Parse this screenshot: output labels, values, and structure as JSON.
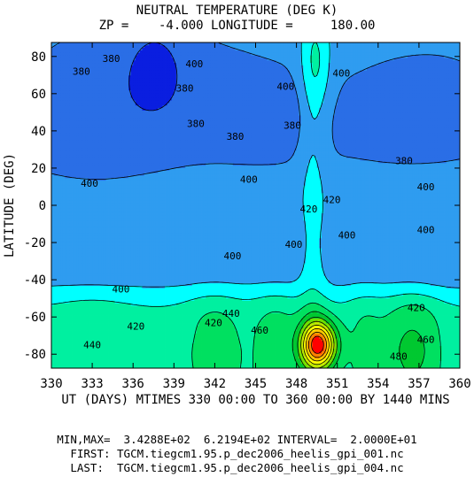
{
  "chart_data": {
    "type": "heatmap",
    "title": "NEUTRAL TEMPERATURE (DEG K)",
    "subtitle": "ZP =    -4.000 LONGITUDE =     180.00",
    "xlabel": "UT (DAYS) MTIMES 330 00:00 TO 360 00:00 BY 1440 MINS",
    "ylabel": "LATITUDE (DEG)",
    "xlim": [
      330,
      360
    ],
    "ylim": [
      -87.5,
      87.5
    ],
    "x_ticks": [
      330,
      333,
      336,
      339,
      342,
      345,
      348,
      351,
      354,
      357,
      360
    ],
    "y_ticks": [
      -80,
      -60,
      -40,
      -20,
      0,
      20,
      40,
      60,
      80
    ],
    "contour_interval": 20,
    "min": 342.88,
    "max": 621.94,
    "contour_labels": [
      {
        "x": 332.2,
        "y": 72,
        "text": "380"
      },
      {
        "x": 334.4,
        "y": 79,
        "text": "380"
      },
      {
        "x": 340.5,
        "y": 76,
        "text": "400"
      },
      {
        "x": 339.8,
        "y": 63,
        "text": "380"
      },
      {
        "x": 340.6,
        "y": 44,
        "text": "380"
      },
      {
        "x": 343.5,
        "y": 37,
        "text": "380"
      },
      {
        "x": 347.2,
        "y": 64,
        "text": "400"
      },
      {
        "x": 347.7,
        "y": 43,
        "text": "380"
      },
      {
        "x": 351.3,
        "y": 71,
        "text": "400"
      },
      {
        "x": 355.9,
        "y": 24,
        "text": "380"
      },
      {
        "x": 332.8,
        "y": 12,
        "text": "400"
      },
      {
        "x": 344.5,
        "y": 14,
        "text": "400"
      },
      {
        "x": 350.6,
        "y": 3,
        "text": "420"
      },
      {
        "x": 348.9,
        "y": -2,
        "text": "420"
      },
      {
        "x": 357.5,
        "y": 10,
        "text": "400"
      },
      {
        "x": 357.5,
        "y": -13,
        "text": "400"
      },
      {
        "x": 351.7,
        "y": -16,
        "text": "400"
      },
      {
        "x": 347.8,
        "y": -21,
        "text": "400"
      },
      {
        "x": 343.3,
        "y": -27,
        "text": "400"
      },
      {
        "x": 335.1,
        "y": -45,
        "text": "400"
      },
      {
        "x": 356.8,
        "y": -55,
        "text": "420"
      },
      {
        "x": 336.2,
        "y": -65,
        "text": "420"
      },
      {
        "x": 341.9,
        "y": -63,
        "text": "420"
      },
      {
        "x": 343.2,
        "y": -58,
        "text": "440"
      },
      {
        "x": 345.3,
        "y": -67,
        "text": "460"
      },
      {
        "x": 333.0,
        "y": -75,
        "text": "440"
      },
      {
        "x": 357.5,
        "y": -72,
        "text": "460"
      },
      {
        "x": 355.5,
        "y": -81,
        "text": "480"
      }
    ]
  },
  "footer": {
    "minmax": "MIN,MAX=  3.4288E+02  6.2194E+02 INTERVAL=  2.0000E+01",
    "first": "FIRST: TGCM.tiegcm1.95.p_dec2006_heelis_gpi_001.nc",
    "last": "LAST:  TGCM.tiegcm1.95.p_dec2006_heelis_gpi_004.nc"
  },
  "colors": {
    "level_colors": [
      "#0000a0",
      "#0a1ee0",
      "#2a6ee6",
      "#2f9cf0",
      "#00ffff",
      "#00f0a0",
      "#00e060",
      "#00c830",
      "#70e000",
      "#c0e800",
      "#ffff00",
      "#ffc800",
      "#ff8000",
      "#ff0000",
      "#c80000",
      "#ff00ff",
      "#ff60ff"
    ],
    "line": "#000000"
  }
}
